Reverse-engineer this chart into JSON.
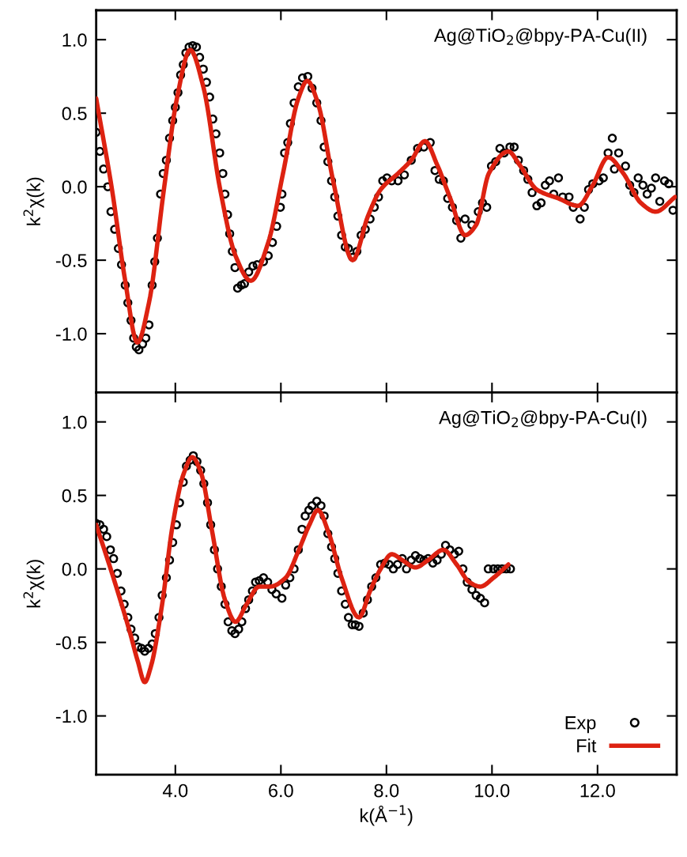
{
  "chart_data": [
    {
      "type": "scatter",
      "ylabel": "k$^{2}$χ(k)",
      "annotations": [
        "Ag@TiO$_{2}$@bpy-PA-Cu(II)"
      ],
      "xlim": [
        2.5,
        13.5
      ],
      "ylim": [
        -1.4,
        1.2
      ],
      "xticks": [
        {
          "value": 4,
          "label": null
        },
        {
          "value": 6,
          "label": null
        },
        {
          "value": 8,
          "label": null
        },
        {
          "value": 10,
          "label": null
        },
        {
          "value": 12,
          "label": null
        }
      ],
      "yticks": [
        {
          "value": -1,
          "label": "-1.0"
        },
        {
          "value": -0.5,
          "label": "-0.5"
        },
        {
          "value": 0,
          "label": "0.0"
        },
        {
          "value": 0.5,
          "label": "0.5"
        },
        {
          "value": 1,
          "label": "1.0"
        }
      ],
      "tick_labels": "y",
      "grid": false,
      "legend": false,
      "series": [
        {
          "color": "#000000",
          "marker": "circle",
          "x": [
            2.5,
            2.57,
            2.64,
            2.72,
            2.78,
            2.85,
            2.92,
            2.98,
            3.05,
            3.1,
            3.16,
            3.21,
            3.26,
            3.31,
            3.38,
            3.44,
            3.5,
            3.56,
            3.61,
            3.66,
            3.72,
            3.77,
            3.83,
            3.89,
            3.95,
            4.0,
            4.05,
            4.1,
            4.15,
            4.2,
            4.26,
            4.33,
            4.4,
            4.46,
            4.53,
            4.59,
            4.65,
            4.71,
            4.77,
            4.84,
            4.9,
            4.94,
            4.99,
            5.03,
            5.08,
            5.13,
            5.18,
            5.25,
            5.31,
            5.39,
            5.47,
            5.55,
            5.67,
            5.76,
            5.84,
            5.92,
            5.99,
            6.02,
            6.07,
            6.13,
            6.18,
            6.25,
            6.33,
            6.41,
            6.51,
            6.59,
            6.68,
            6.76,
            6.82,
            6.89,
            6.96,
            7.02,
            7.08,
            7.15,
            7.22,
            7.28,
            7.36,
            7.44,
            7.52,
            7.6,
            7.69,
            7.77,
            7.85,
            7.93,
            8.01,
            8.1,
            8.22,
            8.34,
            8.47,
            8.59,
            8.71,
            8.83,
            8.92,
            9.0,
            9.08,
            9.16,
            9.25,
            9.33,
            9.41,
            9.49,
            9.62,
            9.74,
            9.82,
            9.9,
            9.99,
            10.07,
            10.15,
            10.23,
            10.34,
            10.42,
            10.5,
            10.6,
            10.68,
            10.76,
            10.85,
            10.93,
            11.01,
            11.09,
            11.17,
            11.26,
            11.34,
            11.46,
            11.54,
            11.67,
            11.75,
            11.83,
            11.91,
            12.03,
            12.11,
            12.2,
            12.28,
            12.32,
            12.4,
            12.53,
            12.61,
            12.69,
            12.77,
            12.86,
            12.94,
            13.02,
            13.1,
            13.18,
            13.27,
            13.35,
            13.43
          ],
          "values": [
            0.37,
            0.24,
            0.12,
            0.0,
            -0.17,
            -0.29,
            -0.42,
            -0.53,
            -0.67,
            -0.79,
            -0.91,
            -1.03,
            -1.09,
            -1.11,
            -1.07,
            -1.03,
            -0.94,
            -0.67,
            -0.51,
            -0.35,
            -0.05,
            0.09,
            0.18,
            0.33,
            0.45,
            0.54,
            0.64,
            0.76,
            0.83,
            0.91,
            0.95,
            0.96,
            0.95,
            0.88,
            0.8,
            0.71,
            0.61,
            0.46,
            0.36,
            0.23,
            0.09,
            -0.05,
            -0.19,
            -0.32,
            -0.44,
            -0.55,
            -0.69,
            -0.67,
            -0.66,
            -0.58,
            -0.54,
            -0.53,
            -0.51,
            -0.47,
            -0.38,
            -0.27,
            -0.14,
            -0.05,
            0.23,
            0.3,
            0.43,
            0.57,
            0.68,
            0.74,
            0.75,
            0.67,
            0.57,
            0.45,
            0.27,
            0.17,
            0.04,
            -0.07,
            -0.2,
            -0.33,
            -0.41,
            -0.42,
            -0.48,
            -0.44,
            -0.33,
            -0.29,
            -0.22,
            -0.14,
            -0.07,
            0.04,
            0.06,
            0.04,
            0.04,
            0.08,
            0.18,
            0.26,
            0.27,
            0.3,
            0.11,
            0.05,
            0.04,
            -0.08,
            -0.14,
            -0.23,
            -0.35,
            -0.22,
            -0.26,
            -0.17,
            -0.11,
            -0.14,
            0.14,
            0.17,
            0.26,
            0.23,
            0.27,
            0.27,
            0.18,
            0.11,
            0.05,
            -0.04,
            -0.13,
            -0.11,
            0.01,
            0.04,
            -0.05,
            0.06,
            -0.07,
            -0.07,
            -0.14,
            -0.22,
            -0.14,
            -0.02,
            0.02,
            0.04,
            0.06,
            0.23,
            0.33,
            0.12,
            0.23,
            0.14,
            0.01,
            -0.04,
            0.06,
            0.01,
            -0.05,
            -0.01,
            0.06,
            -0.1,
            0.04,
            0.02,
            -0.16
          ]
        },
        {
          "type": "line",
          "color": "#dd2211",
          "line_style": "solid",
          "x": [
            2.5,
            2.8,
            3.05,
            3.28,
            3.5,
            3.79,
            4.03,
            4.28,
            4.53,
            4.85,
            5.14,
            5.43,
            5.76,
            6.04,
            6.33,
            6.5,
            6.7,
            6.99,
            7.36,
            7.65,
            7.89,
            8.22,
            8.47,
            8.73,
            8.96,
            9.21,
            9.49,
            9.7,
            9.94,
            10.31,
            10.52,
            10.85,
            11.26,
            11.63,
            11.91,
            12.2,
            12.49,
            12.82,
            13.1,
            13.47
          ],
          "values": [
            0.6,
            -0.02,
            -0.64,
            -1.06,
            -0.79,
            0.0,
            0.6,
            0.93,
            0.68,
            -0.02,
            -0.47,
            -0.64,
            -0.38,
            0.09,
            0.6,
            0.72,
            0.57,
            0.04,
            -0.5,
            -0.2,
            -0.02,
            0.09,
            0.18,
            0.31,
            0.15,
            -0.08,
            -0.33,
            -0.26,
            0.09,
            0.24,
            0.15,
            -0.02,
            -0.08,
            -0.13,
            0.01,
            0.2,
            0.09,
            -0.11,
            -0.17,
            -0.07
          ]
        }
      ]
    },
    {
      "type": "scatter",
      "xlabel": "k(Å$^{−1}$)",
      "ylabel": "k$^{2}$χ(k)",
      "annotations": [
        "Ag@TiO$_{2}$@bpy-PA-Cu(I)"
      ],
      "xlim": [
        2.5,
        13.5
      ],
      "ylim": [
        -1.4,
        1.2
      ],
      "xticks": [
        {
          "value": 4,
          "label": "4.0"
        },
        {
          "value": 6,
          "label": "6.0"
        },
        {
          "value": 8,
          "label": "8.0"
        },
        {
          "value": 10,
          "label": "10.0"
        },
        {
          "value": 12,
          "label": "12.0"
        }
      ],
      "yticks": [
        {
          "value": -1,
          "label": "-1.0"
        },
        {
          "value": -0.5,
          "label": "-0.5"
        },
        {
          "value": 0,
          "label": "0.0"
        },
        {
          "value": 0.5,
          "label": "0.5"
        },
        {
          "value": 1,
          "label": "1.0"
        }
      ],
      "grid": false,
      "legend": "bottom right",
      "series": [
        {
          "name": "Exp",
          "color": "#000000",
          "marker": "circle",
          "x": [
            2.5,
            2.57,
            2.64,
            2.7,
            2.77,
            2.83,
            2.9,
            2.97,
            3.03,
            3.1,
            3.16,
            3.23,
            3.29,
            3.36,
            3.42,
            3.49,
            3.56,
            3.62,
            3.69,
            3.75,
            3.83,
            3.89,
            3.95,
            4.02,
            4.08,
            4.15,
            4.21,
            4.28,
            4.34,
            4.41,
            4.48,
            4.54,
            4.61,
            4.67,
            4.74,
            4.8,
            4.87,
            4.94,
            5.0,
            5.07,
            5.13,
            5.2,
            5.26,
            5.33,
            5.39,
            5.46,
            5.52,
            5.59,
            5.67,
            5.75,
            5.83,
            5.91,
            6.02,
            6.09,
            6.17,
            6.25,
            6.33,
            6.4,
            6.46,
            6.53,
            6.59,
            6.68,
            6.76,
            6.82,
            6.89,
            6.96,
            7.02,
            7.08,
            7.15,
            7.22,
            7.28,
            7.35,
            7.41,
            7.48,
            7.56,
            7.64,
            7.72,
            7.8,
            7.89,
            7.97,
            8.05,
            8.13,
            8.21,
            8.3,
            8.38,
            8.47,
            8.55,
            8.63,
            8.71,
            8.79,
            8.88,
            8.96,
            9.04,
            9.12,
            9.2,
            9.29,
            9.37,
            9.45,
            9.53,
            9.62,
            9.7,
            9.78,
            9.86,
            9.93,
            10.03,
            10.11,
            10.19,
            10.27,
            10.35
          ],
          "values": [
            0.31,
            0.3,
            0.27,
            0.22,
            0.13,
            0.07,
            -0.03,
            -0.15,
            -0.24,
            -0.33,
            -0.41,
            -0.47,
            -0.53,
            -0.54,
            -0.56,
            -0.54,
            -0.51,
            -0.44,
            -0.33,
            -0.18,
            -0.06,
            0.06,
            0.18,
            0.3,
            0.45,
            0.59,
            0.7,
            0.74,
            0.77,
            0.73,
            0.67,
            0.58,
            0.45,
            0.3,
            0.13,
            0.0,
            -0.12,
            -0.24,
            -0.36,
            -0.42,
            -0.44,
            -0.41,
            -0.36,
            -0.27,
            -0.21,
            -0.15,
            -0.09,
            -0.08,
            -0.06,
            -0.09,
            -0.14,
            -0.17,
            -0.2,
            -0.11,
            -0.06,
            0.0,
            0.13,
            0.27,
            0.36,
            0.4,
            0.43,
            0.46,
            0.43,
            0.36,
            0.24,
            0.15,
            0.07,
            -0.03,
            -0.15,
            -0.24,
            -0.33,
            -0.38,
            -0.38,
            -0.39,
            -0.3,
            -0.21,
            -0.12,
            -0.06,
            0.03,
            0.04,
            0.03,
            0.0,
            0.03,
            0.07,
            0.0,
            0.06,
            0.09,
            0.07,
            0.06,
            0.07,
            0.04,
            0.06,
            0.1,
            0.16,
            0.13,
            0.1,
            0.12,
            0.0,
            -0.09,
            -0.14,
            -0.18,
            -0.2,
            -0.23,
            0.0,
            0.0,
            0.0,
            0.0,
            0.0,
            0.0
          ]
        },
        {
          "type": "line",
          "name": "Fit",
          "color": "#dd2211",
          "line_style": "solid",
          "x": [
            2.5,
            2.8,
            3.13,
            3.29,
            3.42,
            3.54,
            3.75,
            3.95,
            4.16,
            4.32,
            4.49,
            4.69,
            4.94,
            5.14,
            5.35,
            5.59,
            5.8,
            6.09,
            6.33,
            6.54,
            6.7,
            6.91,
            7.15,
            7.48,
            7.69,
            7.89,
            8.1,
            8.3,
            8.55,
            8.79,
            9.08,
            9.33,
            9.57,
            9.78,
            10.03,
            10.31
          ],
          "values": [
            0.3,
            -0.03,
            -0.42,
            -0.63,
            -0.77,
            -0.66,
            -0.24,
            0.3,
            0.65,
            0.76,
            0.65,
            0.27,
            -0.21,
            -0.36,
            -0.24,
            -0.12,
            -0.12,
            -0.06,
            0.12,
            0.3,
            0.4,
            0.24,
            -0.06,
            -0.33,
            -0.15,
            0.0,
            0.1,
            0.06,
            0.01,
            0.06,
            0.13,
            0.03,
            -0.09,
            -0.12,
            -0.06,
            0.03
          ]
        }
      ]
    }
  ]
}
